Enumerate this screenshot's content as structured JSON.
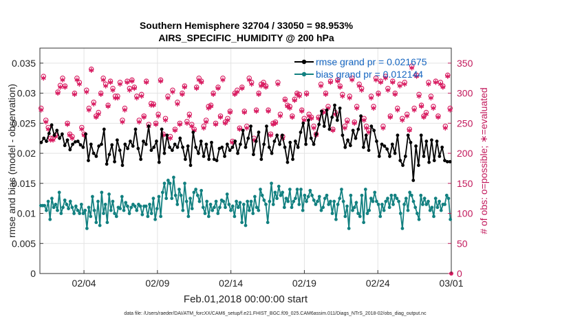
{
  "chart_data": {
    "type": "line",
    "title": "Southern Hemisphere 32704 / 33050 = 98.953%",
    "subtitle": "AIRS_SPECIFIC_HUMIDITY @ 200 hPa",
    "xlabel": "Feb.01,2018 00:00:00 start",
    "ylabel_left": "rmse and bias (model - observation)",
    "ylabel_right": "# of obs: o=possible; ∗=evaluated",
    "footer": "data file: /Users/raeder/DAI/ATM_forcXX/CAM6_setup/f.e21.FHIST_BGC.f09_025.CAM6assim.011/Diags_NTrS_2018-02/obs_diag_output.nc",
    "x_ticks": [
      "02/04",
      "02/09",
      "02/14",
      "02/19",
      "02/24",
      "03/01"
    ],
    "y_left_ticks": [
      "0",
      "0.005",
      "0.01",
      "0.015",
      "0.02",
      "0.025",
      "0.03",
      "0.035"
    ],
    "y_right_ticks": [
      "0",
      "50",
      "100",
      "150",
      "200",
      "250",
      "300",
      "350"
    ],
    "ylim_left": [
      0,
      0.0375
    ],
    "ylim_right": [
      0,
      375
    ],
    "xlim": [
      0,
      28
    ],
    "grid": true,
    "legend": [
      {
        "label": "rmse grand pr = 0.021675",
        "color": "#000000"
      },
      {
        "label": "bias grand pr = 0.012144",
        "color": "#128080"
      }
    ],
    "colors": {
      "rmse": "#000000",
      "bias": "#128080",
      "obs": "#d81b60"
    },
    "series": [
      {
        "name": "rmse",
        "axis": "left",
        "values": [
          0.0218,
          0.0225,
          0.022,
          0.0233,
          0.0247,
          0.023,
          0.0238,
          0.0225,
          0.0232,
          0.0213,
          0.0222,
          0.0206,
          0.0215,
          0.0219,
          0.022,
          0.0214,
          0.021,
          0.0232,
          0.0188,
          0.0215,
          0.02,
          0.0195,
          0.0212,
          0.0215,
          0.024,
          0.0182,
          0.0198,
          0.0214,
          0.0186,
          0.0222,
          0.0205,
          0.018,
          0.0215,
          0.0208,
          0.022,
          0.0212,
          0.024,
          0.0208,
          0.019,
          0.022,
          0.0215,
          0.0245,
          0.0205,
          0.021,
          0.022,
          0.0185,
          0.024,
          0.02,
          0.023,
          0.021,
          0.0205,
          0.0215,
          0.021,
          0.0225,
          0.021,
          0.019,
          0.0212,
          0.018,
          0.0235,
          0.021,
          0.02,
          0.022,
          0.0195,
          0.0215,
          0.019,
          0.0218,
          0.019,
          0.0188,
          0.0208,
          0.021,
          0.0195,
          0.0215,
          0.0205,
          0.021,
          0.022,
          0.02,
          0.0215,
          0.0238,
          0.021,
          0.0225,
          0.0245,
          0.0198,
          0.022,
          0.0235,
          0.019,
          0.0215,
          0.0245,
          0.021,
          0.02,
          0.022,
          0.023,
          0.0215,
          0.023,
          0.021,
          0.0185,
          0.0218,
          0.019,
          0.022,
          0.021,
          0.0235,
          0.025,
          0.0215,
          0.0255,
          0.0225,
          0.0215,
          0.0232,
          0.0248,
          0.027,
          0.0245,
          0.0272,
          0.024,
          0.026,
          0.028,
          0.0255,
          0.0275,
          0.023,
          0.021,
          0.0222,
          0.0213,
          0.0238,
          0.0225,
          0.024,
          0.0262,
          0.021,
          0.023,
          0.0205,
          0.0245,
          0.0238,
          0.022,
          0.0195,
          0.0215,
          0.0212,
          0.0207,
          0.0195,
          0.0215,
          0.02,
          0.023,
          0.0188,
          0.018,
          0.0195,
          0.023,
          0.0218,
          0.0155,
          0.0212,
          0.018,
          0.023,
          0.0195,
          0.022,
          0.0185,
          0.0222,
          0.0188,
          0.022,
          0.0195,
          0.021,
          0.0188,
          0.0186,
          0.0186
        ]
      },
      {
        "name": "bias",
        "axis": "left",
        "values": [
          0.0113,
          0.0113,
          0.0113,
          0.0105,
          0.012,
          0.009,
          0.0125,
          0.011,
          0.0115,
          0.0105,
          0.0135,
          0.01,
          0.011,
          0.0122,
          0.0115,
          0.0108,
          0.012,
          0.011,
          0.01,
          0.0112,
          0.0105,
          0.01,
          0.0115,
          0.01,
          0.0105,
          0.0075,
          0.011,
          0.0095,
          0.0128,
          0.0105,
          0.0085,
          0.012,
          0.008,
          0.0135,
          0.01,
          0.0115,
          0.0085,
          0.0132,
          0.0105,
          0.012,
          0.01,
          0.0095,
          0.011,
          0.0108,
          0.0128,
          0.0105,
          0.0118,
          0.0112,
          0.01,
          0.011,
          0.0115,
          0.0112,
          0.0105,
          0.0115,
          0.0112,
          0.0098,
          0.0112,
          0.0112,
          0.0095,
          0.0115,
          0.01,
          0.0125,
          0.009,
          0.0108,
          0.0128,
          0.0095,
          0.0135,
          0.015,
          0.0125,
          0.0155,
          0.015,
          0.0125,
          0.016,
          0.013,
          0.0115,
          0.014,
          0.013,
          0.0105,
          0.015,
          0.012,
          0.0095,
          0.0125,
          0.0108,
          0.0135,
          0.014,
          0.013,
          0.012,
          0.0138,
          0.011,
          0.01,
          0.012,
          0.0095,
          0.0115,
          0.0105,
          0.011,
          0.012,
          0.01,
          0.011,
          0.0122,
          0.012,
          0.011,
          0.0132,
          0.0115,
          0.0105,
          0.0112,
          0.0095,
          0.012,
          0.011,
          0.0118,
          0.0085,
          0.0115,
          0.008,
          0.012,
          0.0105,
          0.012,
          0.01,
          0.0128,
          0.011,
          0.0105,
          0.014,
          0.013,
          0.0122,
          0.0115,
          0.0085,
          0.012,
          0.015,
          0.0115,
          0.0135,
          0.0125,
          0.0145,
          0.013,
          0.0135,
          0.011,
          0.0125,
          0.012,
          0.014,
          0.011,
          0.012,
          0.0125,
          0.014,
          0.0115,
          0.014,
          0.0105,
          0.013,
          0.012,
          0.0128,
          0.0138,
          0.013,
          0.0122,
          0.0115,
          0.012,
          0.0128,
          0.0105,
          0.011,
          0.0125,
          0.013,
          0.0115,
          0.012,
          0.01,
          0.012,
          0.009,
          0.0115,
          0.0125,
          0.014,
          0.012,
          0.0095,
          0.0112,
          0.0075,
          0.013,
          0.0105,
          0.011,
          0.0118,
          0.01,
          0.0095,
          0.013,
          0.0085,
          0.014,
          0.01,
          0.0105,
          0.0125,
          0.012,
          0.0135,
          0.012,
          0.0115,
          0.0095,
          0.0115,
          0.0105,
          0.012,
          0.0125,
          0.011,
          0.013,
          0.0115,
          0.013,
          0.0125,
          0.012,
          0.01,
          0.0075,
          0.0115,
          0.0125,
          0.0105,
          0.0135,
          0.013,
          0.012,
          0.011,
          0.01,
          0.009,
          0.013,
          0.0115,
          0.0125,
          0.0115,
          0.012,
          0.0105,
          0.011,
          0.0095,
          0.0125,
          0.011,
          0.012,
          0.0105,
          0.0115,
          0.0115,
          0.013,
          0.0125,
          0.009
        ]
      },
      {
        "name": "obs_possible",
        "axis": "right",
        "marker": "circle",
        "values": [
          275,
          328,
          255,
          243,
          225,
          225,
          230,
          302,
          313,
          325,
          312,
          250,
          232,
          228,
          300,
          325,
          318,
          243,
          232,
          305,
          275,
          340,
          285,
          262,
          268,
          300,
          325,
          315,
          280,
          320,
          308,
          295,
          295,
          318,
          255,
          275,
          320,
          308,
          322,
          310,
          295,
          255,
          298,
          262,
          320,
          248,
          283,
          282,
          250,
          265,
          322,
          232,
          258,
          295,
          228,
          305,
          240,
          285,
          250,
          300,
          312,
          253,
          265,
          248,
          240,
          310,
          325,
          320,
          245,
          255,
          278,
          280,
          300,
          250,
          310,
          262,
          325,
          252,
          258,
          270,
          220,
          300,
          305,
          242,
          310,
          270,
          245,
          325,
          318,
          225,
          272,
          300,
          315,
          318,
          312,
          272,
          232,
          250,
          252,
          318,
          265,
          228,
          290,
          280,
          278,
          262,
          290,
          300,
          298,
          272,
          258,
          300,
          265,
          260,
          245,
          232,
          260,
          315,
          270,
          300,
          278,
          320,
          240,
          268,
          322,
          312,
          298,
          245,
          255,
          295,
          325,
          252,
          278,
          315,
          308,
          258,
          245,
          238,
          295,
          278,
          325,
          300,
          320,
          245,
          328,
          308,
          262,
          320,
          300,
          275,
          315,
          258,
          318,
          265,
          240,
          345,
          275,
          330,
          298,
          280,
          262,
          268,
          318,
          295,
          278,
          320,
          262,
          318,
          312,
          245,
          330,
          275
        ]
      },
      {
        "name": "obs_evaluated",
        "axis": "right",
        "marker": "star",
        "values": [
          272,
          325,
          252,
          240,
          222,
          222,
          228,
          300,
          310,
          322,
          310,
          248,
          230,
          225,
          298,
          322,
          315,
          240,
          230,
          302,
          272,
          338,
          282,
          260,
          265,
          298,
          322,
          312,
          278,
          318,
          305,
          292,
          292,
          315,
          252,
          272,
          318,
          305,
          320,
          308,
          292,
          252,
          295,
          260,
          318,
          245,
          280,
          280,
          248,
          262,
          320,
          230,
          255,
          292,
          225,
          302,
          238,
          282,
          248,
          298,
          310,
          250,
          262,
          245,
          238,
          308,
          322,
          318,
          242,
          252,
          275,
          278,
          298,
          248,
          308,
          260,
          322,
          250,
          255,
          268,
          218,
          298,
          302,
          240,
          308,
          268,
          242,
          322,
          315,
          222,
          270,
          298,
          312,
          315,
          310,
          270,
          230,
          248,
          250,
          315,
          262,
          225,
          288,
          278,
          275,
          260,
          288,
          298,
          295,
          270,
          255,
          298,
          262,
          258,
          242,
          230,
          258,
          312,
          268,
          298,
          275,
          318,
          238,
          265,
          320,
          310,
          295,
          242,
          252,
          292,
          322,
          250,
          275,
          312,
          305,
          255,
          242,
          235,
          292,
          275,
          322,
          298,
          318,
          242,
          325,
          305,
          260,
          318,
          298,
          272,
          312,
          255,
          315,
          262,
          238,
          342,
          272,
          328,
          295,
          278,
          260,
          265,
          315,
          292,
          275,
          318,
          260,
          315,
          310,
          242,
          328,
          272
        ]
      }
    ]
  }
}
